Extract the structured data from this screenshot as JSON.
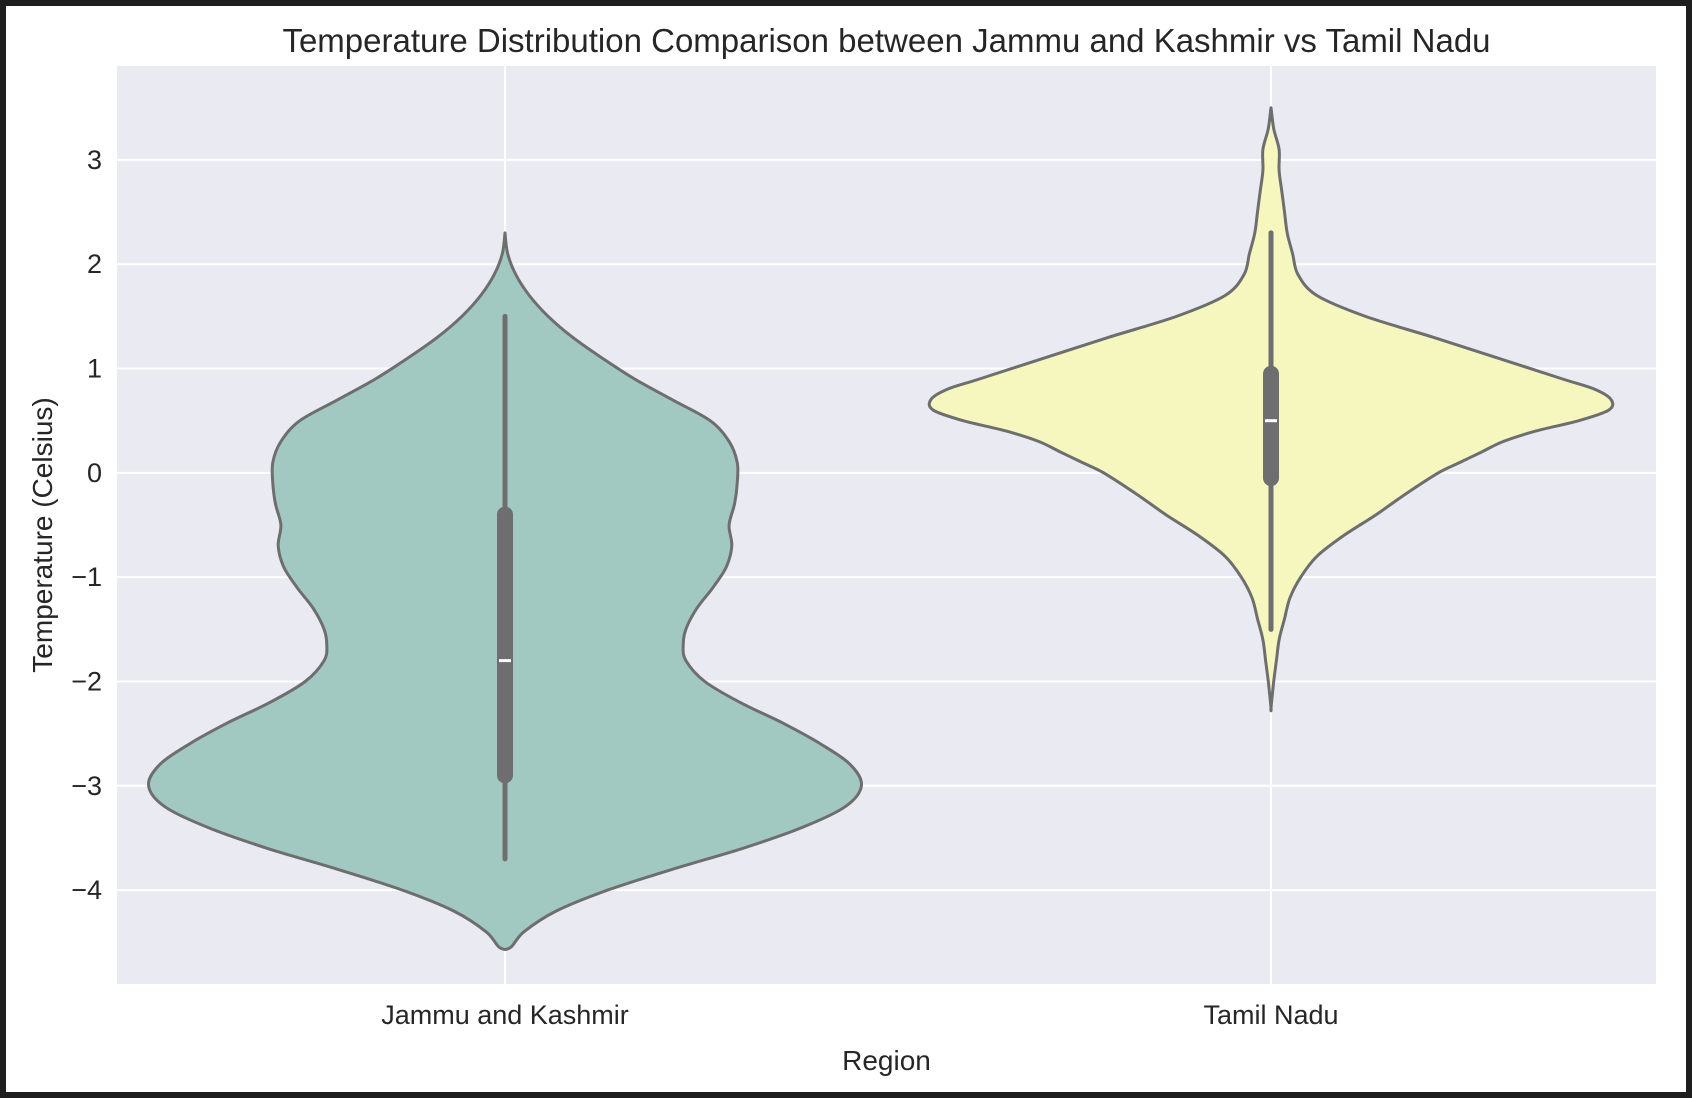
{
  "chart_data": {
    "type": "violin",
    "title": "Temperature Distribution Comparison between Jammu and Kashmir vs Tamil Nadu",
    "xlabel": "Region",
    "ylabel": "Temperature (Celsius)",
    "ylim": [
      -4.9,
      3.9
    ],
    "yticks": [
      3,
      2,
      1,
      0,
      -1,
      -2,
      -3,
      -4
    ],
    "ytick_labels": [
      "3",
      "2",
      "1",
      "0",
      "−1",
      "−2",
      "−3",
      "−4"
    ],
    "grid": true,
    "categories": [
      "Jammu and Kashmir",
      "Tamil Nadu"
    ],
    "colors": {
      "background": "#eaeaf2",
      "grid": "#ffffff",
      "outline": "#6e6e6e",
      "box": "#6e6e6e",
      "median": "#ffffff"
    },
    "violins": [
      {
        "category": "Jammu and Kashmir",
        "fill": "#a2c9c1",
        "min": -4.55,
        "max": 2.3,
        "whisker_low": -3.7,
        "whisker_high": 1.5,
        "q1": -2.9,
        "median": -1.8,
        "q3": -0.4,
        "density_profile": [
          [
            2.3,
            0.0
          ],
          [
            2.1,
            0.01
          ],
          [
            1.9,
            0.04
          ],
          [
            1.7,
            0.09
          ],
          [
            1.5,
            0.16
          ],
          [
            1.3,
            0.25
          ],
          [
            1.1,
            0.36
          ],
          [
            0.9,
            0.48
          ],
          [
            0.7,
            0.62
          ],
          [
            0.5,
            0.76
          ],
          [
            0.3,
            0.83
          ],
          [
            0.1,
            0.86
          ],
          [
            -0.1,
            0.86
          ],
          [
            -0.3,
            0.85
          ],
          [
            -0.5,
            0.83
          ],
          [
            -0.7,
            0.84
          ],
          [
            -0.9,
            0.82
          ],
          [
            -1.1,
            0.77
          ],
          [
            -1.3,
            0.71
          ],
          [
            -1.5,
            0.67
          ],
          [
            -1.65,
            0.66
          ],
          [
            -1.8,
            0.67
          ],
          [
            -2.0,
            0.74
          ],
          [
            -2.2,
            0.87
          ],
          [
            -2.4,
            1.03
          ],
          [
            -2.6,
            1.17
          ],
          [
            -2.8,
            1.28
          ],
          [
            -3.0,
            1.32
          ],
          [
            -3.2,
            1.26
          ],
          [
            -3.4,
            1.1
          ],
          [
            -3.6,
            0.88
          ],
          [
            -3.8,
            0.62
          ],
          [
            -4.0,
            0.38
          ],
          [
            -4.2,
            0.19
          ],
          [
            -4.4,
            0.07
          ],
          [
            -4.55,
            0.02
          ]
        ]
      },
      {
        "category": "Tamil Nadu",
        "fill": "#f6f7be",
        "min": -2.25,
        "max": 3.5,
        "whisker_low": -1.5,
        "whisker_high": 2.3,
        "q1": -0.05,
        "median": 0.5,
        "q3": 0.95,
        "density_profile": [
          [
            3.5,
            0.0
          ],
          [
            3.3,
            0.01
          ],
          [
            3.1,
            0.03
          ],
          [
            2.9,
            0.03
          ],
          [
            2.7,
            0.04
          ],
          [
            2.5,
            0.05
          ],
          [
            2.3,
            0.06
          ],
          [
            2.1,
            0.08
          ],
          [
            1.9,
            0.1
          ],
          [
            1.7,
            0.17
          ],
          [
            1.5,
            0.35
          ],
          [
            1.3,
            0.6
          ],
          [
            1.1,
            0.84
          ],
          [
            0.9,
            1.08
          ],
          [
            0.8,
            1.2
          ],
          [
            0.7,
            1.26
          ],
          [
            0.6,
            1.25
          ],
          [
            0.5,
            1.14
          ],
          [
            0.4,
            0.98
          ],
          [
            0.3,
            0.86
          ],
          [
            0.2,
            0.78
          ],
          [
            0.1,
            0.7
          ],
          [
            0.0,
            0.62
          ],
          [
            -0.2,
            0.5
          ],
          [
            -0.4,
            0.39
          ],
          [
            -0.6,
            0.27
          ],
          [
            -0.8,
            0.17
          ],
          [
            -1.0,
            0.11
          ],
          [
            -1.2,
            0.07
          ],
          [
            -1.4,
            0.05
          ],
          [
            -1.6,
            0.03
          ],
          [
            -1.8,
            0.02
          ],
          [
            -2.0,
            0.01
          ],
          [
            -2.25,
            0.0
          ]
        ]
      }
    ]
  }
}
